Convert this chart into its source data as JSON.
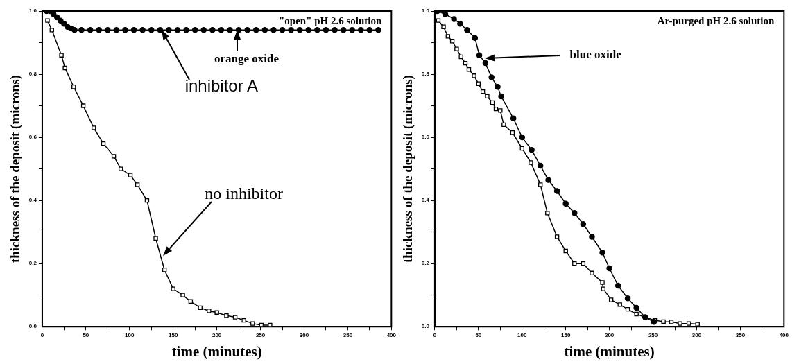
{
  "chart_data": [
    {
      "type": "line",
      "title": "\"open\" pH 2.6 solution",
      "xlabel": "time (minutes)",
      "ylabel": "thickness of the deposit (microns)",
      "xlim": [
        0,
        400
      ],
      "ylim": [
        0,
        1
      ],
      "xticks": [
        0,
        {
          "value": 25,
          "label": null
        },
        50,
        {
          "value": 75,
          "label": null
        },
        100,
        {
          "value": 125,
          "label": null
        },
        150,
        {
          "value": 175,
          "label": null
        },
        200,
        {
          "value": 225,
          "label": null
        },
        250,
        {
          "value": 275,
          "label": null
        },
        300,
        {
          "value": 325,
          "label": null
        },
        350,
        {
          "value": 375,
          "label": null
        },
        400
      ],
      "yticks": [
        {
          "value": 0,
          "label": "0.0"
        },
        {
          "value": 0.1,
          "label": null
        },
        0.2,
        {
          "value": 0.3,
          "label": null
        },
        0.4,
        {
          "value": 0.5,
          "label": null
        },
        0.6,
        {
          "value": 0.7,
          "label": null
        },
        0.8,
        {
          "value": 0.9,
          "label": null
        },
        {
          "value": 1,
          "label": "1.0"
        }
      ],
      "grid": false,
      "series": [
        {
          "color": "#000000",
          "marker": "circle",
          "x": [
            5,
            9,
            13,
            17,
            21,
            25,
            29,
            33,
            37,
            45,
            55,
            65,
            75,
            85,
            95,
            105,
            115,
            125,
            135,
            145,
            155,
            165,
            175,
            185,
            195,
            205,
            215,
            225,
            235,
            245,
            255,
            265,
            275,
            285,
            295,
            305,
            315,
            325,
            335,
            345,
            355,
            365,
            375,
            385
          ],
          "values": [
            1.0,
            1.0,
            0.99,
            0.98,
            0.97,
            0.96,
            0.95,
            0.945,
            0.94,
            0.94,
            0.94,
            0.94,
            0.94,
            0.94,
            0.94,
            0.94,
            0.94,
            0.94,
            0.94,
            0.94,
            0.94,
            0.94,
            0.94,
            0.94,
            0.94,
            0.94,
            0.94,
            0.94,
            0.94,
            0.94,
            0.94,
            0.94,
            0.94,
            0.94,
            0.94,
            0.94,
            0.94,
            0.94,
            0.94,
            0.94,
            0.94,
            0.94,
            0.94,
            0.94
          ]
        },
        {
          "color": "#000000",
          "marker": "square",
          "x": [
            6,
            11,
            22,
            26,
            36,
            47,
            59,
            70,
            82,
            90,
            101,
            109,
            120,
            130,
            140,
            150,
            161,
            170,
            181,
            191,
            200,
            211,
            221,
            231,
            241,
            251,
            261
          ],
          "values": [
            0.97,
            0.94,
            0.86,
            0.82,
            0.76,
            0.7,
            0.63,
            0.58,
            0.54,
            0.5,
            0.48,
            0.45,
            0.4,
            0.28,
            0.18,
            0.12,
            0.1,
            0.08,
            0.06,
            0.05,
            0.045,
            0.035,
            0.03,
            0.02,
            0.01,
            0.005,
            0.005
          ]
        }
      ],
      "annotations": [
        "inhibitor A",
        {
          "text": "orange oxide",
          "x": 223,
          "y": 0.94
        },
        "no inhibitor"
      ]
    },
    {
      "type": "line",
      "title": "Ar-purged pH 2.6 solution",
      "xlabel": "time (minutes)",
      "ylabel": "thickness of the deposit (microns)",
      "xlim": [
        0,
        400
      ],
      "ylim": [
        0,
        1
      ],
      "xticks": [
        0,
        {
          "value": 25,
          "label": null
        },
        50,
        {
          "value": 75,
          "label": null
        },
        100,
        {
          "value": 125,
          "label": null
        },
        150,
        {
          "value": 175,
          "label": null
        },
        200,
        {
          "value": 225,
          "label": null
        },
        250,
        {
          "value": 275,
          "label": null
        },
        300,
        {
          "value": 325,
          "label": null
        },
        350,
        {
          "value": 375,
          "label": null
        },
        400
      ],
      "yticks": [
        {
          "value": 0,
          "label": "0.0"
        },
        {
          "value": 0.1,
          "label": null
        },
        0.2,
        {
          "value": 0.3,
          "label": null
        },
        0.4,
        {
          "value": 0.5,
          "label": null
        },
        0.6,
        {
          "value": 0.7,
          "label": null
        },
        0.8,
        {
          "value": 0.9,
          "label": null
        },
        {
          "value": 1,
          "label": "1.0"
        }
      ],
      "grid": false,
      "series": [
        {
          "color": "#000000",
          "marker": "circle",
          "x": [
            3,
            12,
            22,
            29,
            37,
            46,
            51,
            58,
            65,
            72,
            76,
            90,
            100,
            111,
            121,
            130,
            140,
            150,
            160,
            170,
            180,
            192,
            200,
            210,
            221,
            231,
            241,
            251
          ],
          "values": [
            1.0,
            0.99,
            0.975,
            0.96,
            0.94,
            0.915,
            0.86,
            0.835,
            0.79,
            0.76,
            0.73,
            0.66,
            0.6,
            0.56,
            0.51,
            0.465,
            0.43,
            0.39,
            0.36,
            0.325,
            0.285,
            0.235,
            0.185,
            0.13,
            0.09,
            0.06,
            0.03,
            0.015
          ]
        },
        {
          "color": "#000000",
          "marker": "square",
          "x": [
            4,
            10,
            15,
            20,
            25,
            30,
            35,
            39,
            45,
            50,
            55,
            60,
            66,
            70,
            75,
            79,
            89,
            100,
            110,
            121,
            129,
            140,
            150,
            160,
            170,
            180,
            192,
            193,
            202,
            212,
            221,
            231,
            241,
            252,
            262,
            271,
            281,
            291,
            301
          ],
          "values": [
            0.97,
            0.95,
            0.92,
            0.905,
            0.88,
            0.855,
            0.835,
            0.815,
            0.795,
            0.77,
            0.745,
            0.73,
            0.71,
            0.69,
            0.685,
            0.64,
            0.615,
            0.565,
            0.52,
            0.45,
            0.36,
            0.285,
            0.24,
            0.2,
            0.2,
            0.17,
            0.14,
            0.12,
            0.085,
            0.07,
            0.055,
            0.04,
            0.03,
            0.02,
            0.016,
            0.015,
            0.01,
            0.01,
            0.008
          ]
        }
      ],
      "annotations": [
        "blue oxide"
      ]
    }
  ]
}
